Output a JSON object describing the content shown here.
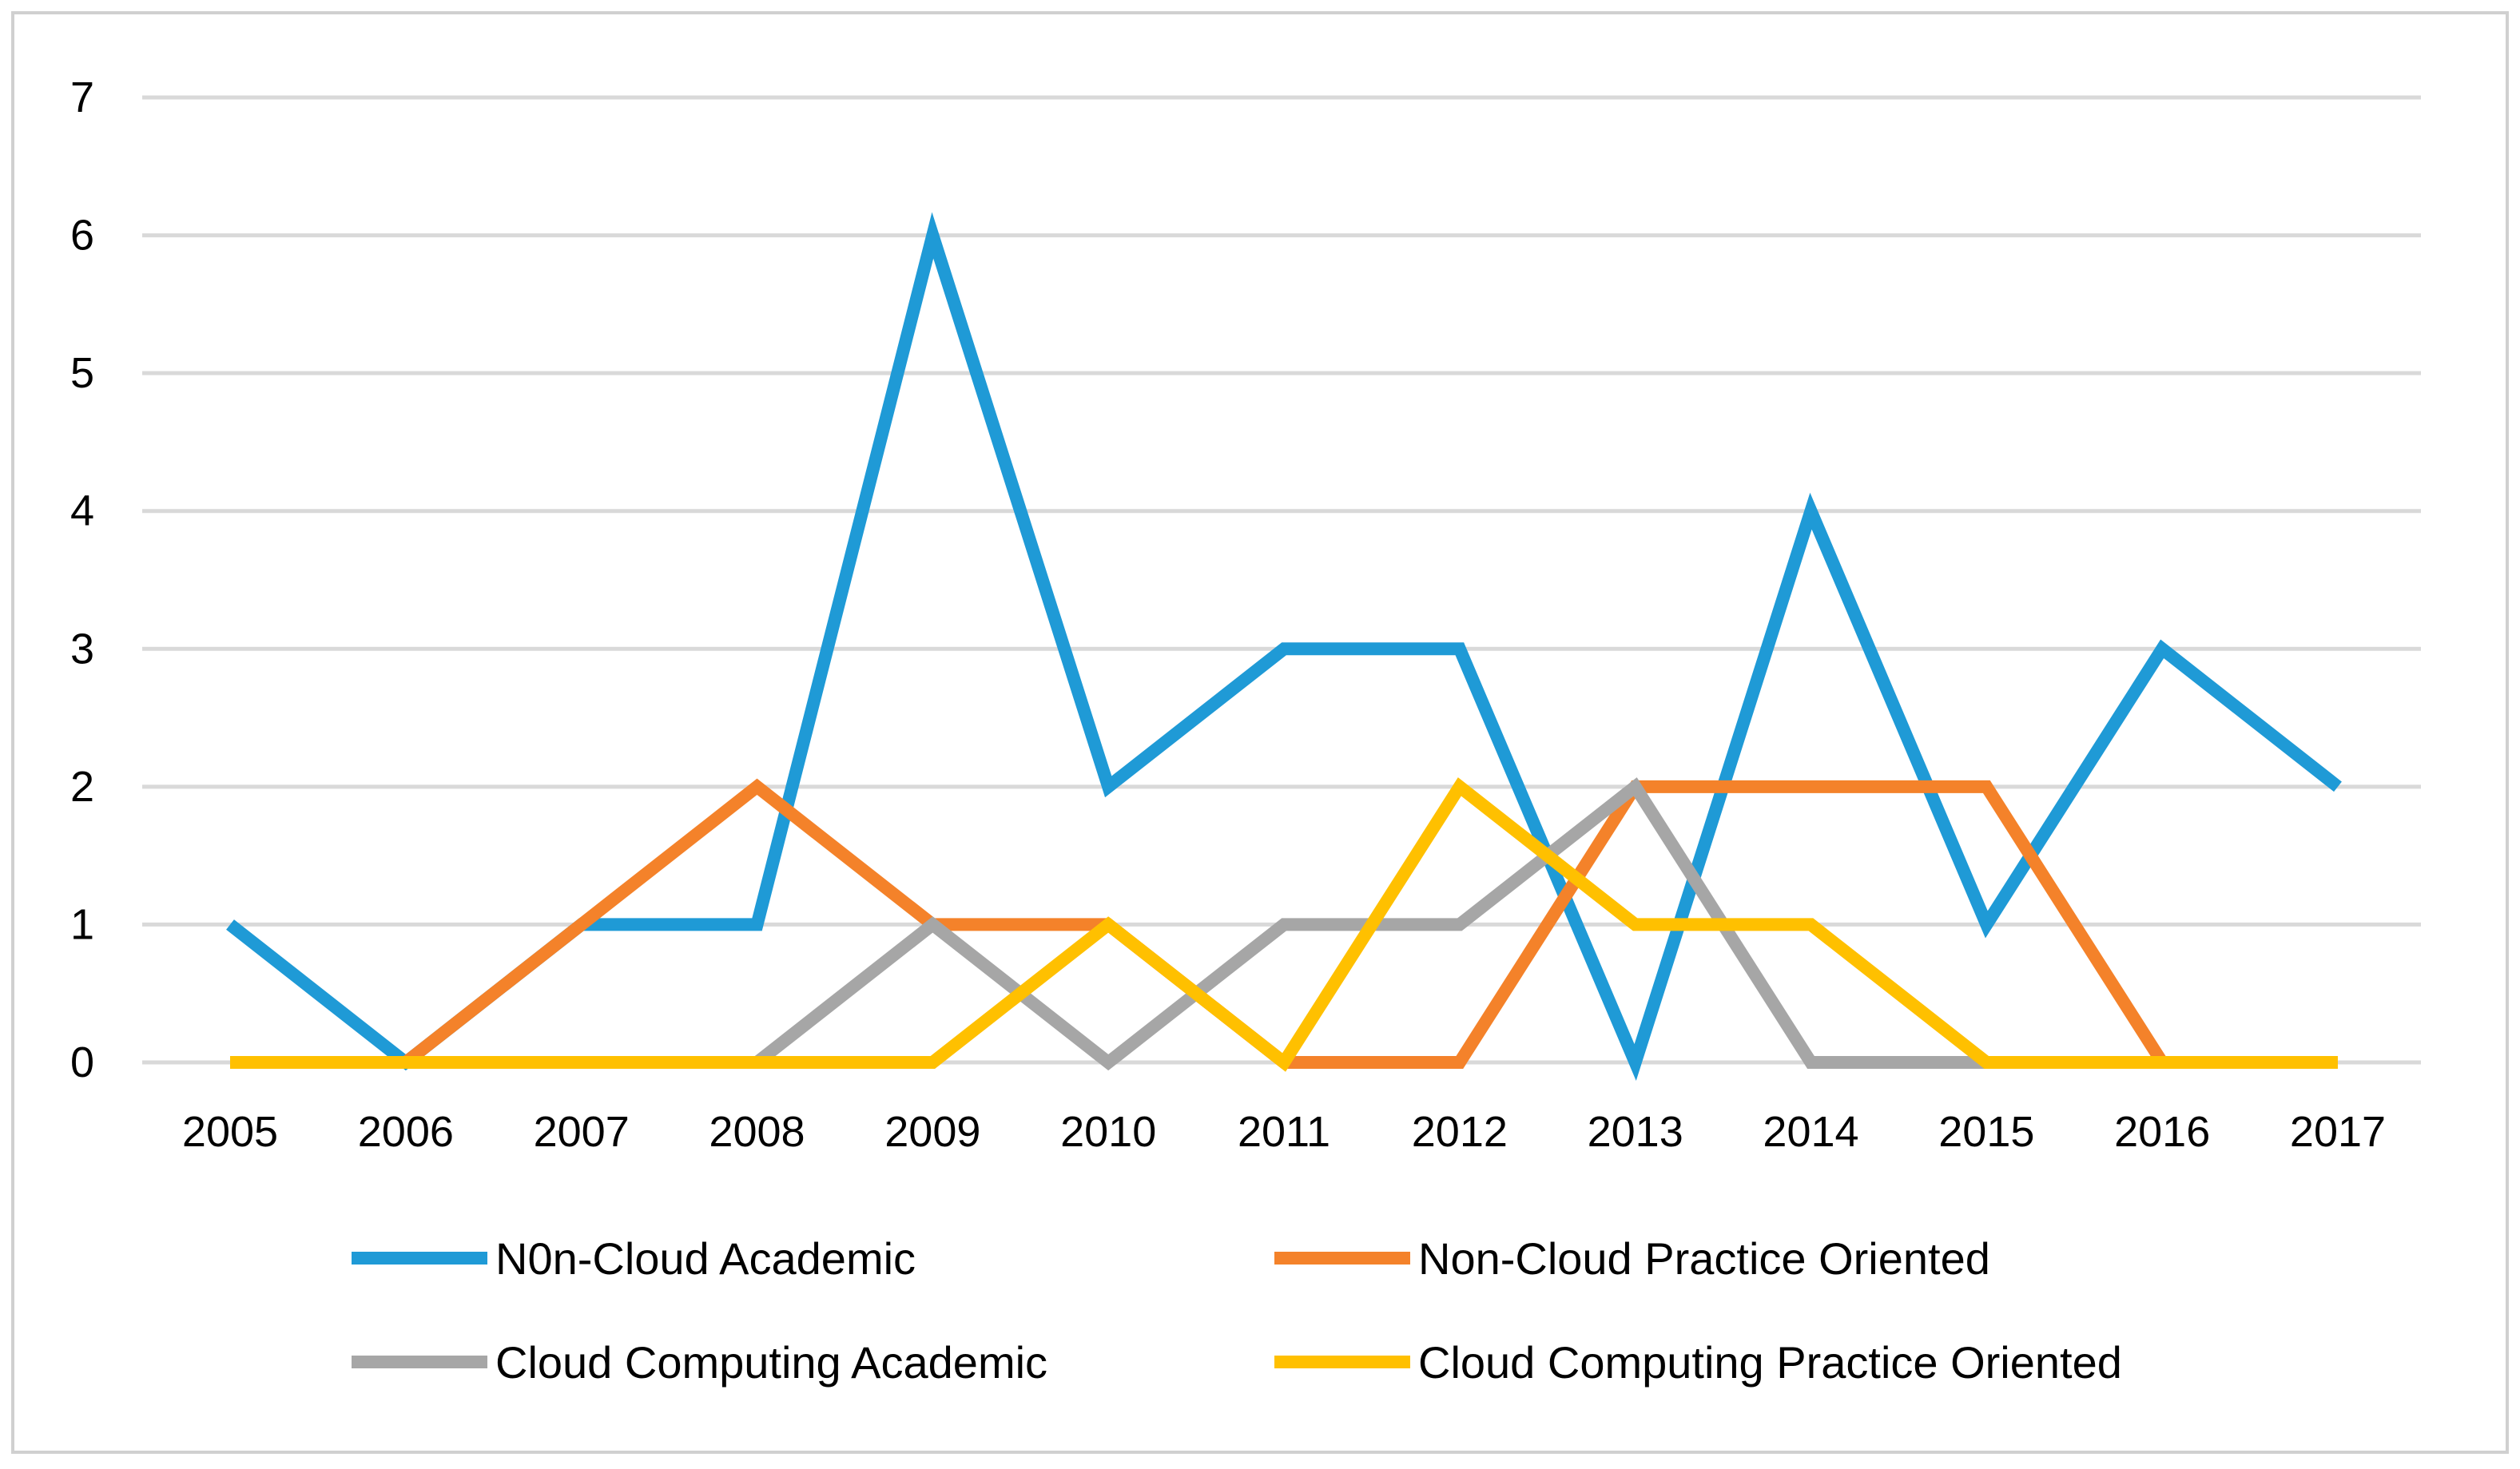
{
  "chart_data": {
    "type": "line",
    "title": "",
    "xlabel": "",
    "ylabel": "",
    "ylim": [
      0,
      7
    ],
    "yticks": [
      "0",
      "1",
      "2",
      "3",
      "4",
      "5",
      "6",
      "7"
    ],
    "categories": [
      "2005",
      "2006",
      "2007",
      "2008",
      "2009",
      "2010",
      "2011",
      "2012",
      "2013",
      "2014",
      "2015",
      "2016",
      "2017"
    ],
    "grid": true,
    "legend_position": "bottom",
    "series": [
      {
        "name": "N0n-Cloud Academic",
        "color": "#1f9ad6",
        "values": [
          1,
          0,
          1,
          1,
          6,
          2,
          3,
          3,
          0,
          4,
          1,
          3,
          2
        ]
      },
      {
        "name": "Non-Cloud Practice Oriented",
        "color": "#f4822a",
        "values": [
          null,
          0,
          1,
          2,
          1,
          1,
          0,
          0,
          2,
          2,
          2,
          0,
          null
        ]
      },
      {
        "name": "Cloud Computing Academic",
        "color": "#a6a6a6",
        "values": [
          null,
          null,
          null,
          0,
          1,
          0,
          1,
          1,
          2,
          0,
          0,
          null,
          null
        ]
      },
      {
        "name": "Cloud Computing Practice Oriented",
        "color": "#ffc000",
        "values": [
          0,
          0,
          0,
          0,
          0,
          1,
          0,
          2,
          1,
          1,
          0,
          0,
          0
        ]
      }
    ]
  }
}
